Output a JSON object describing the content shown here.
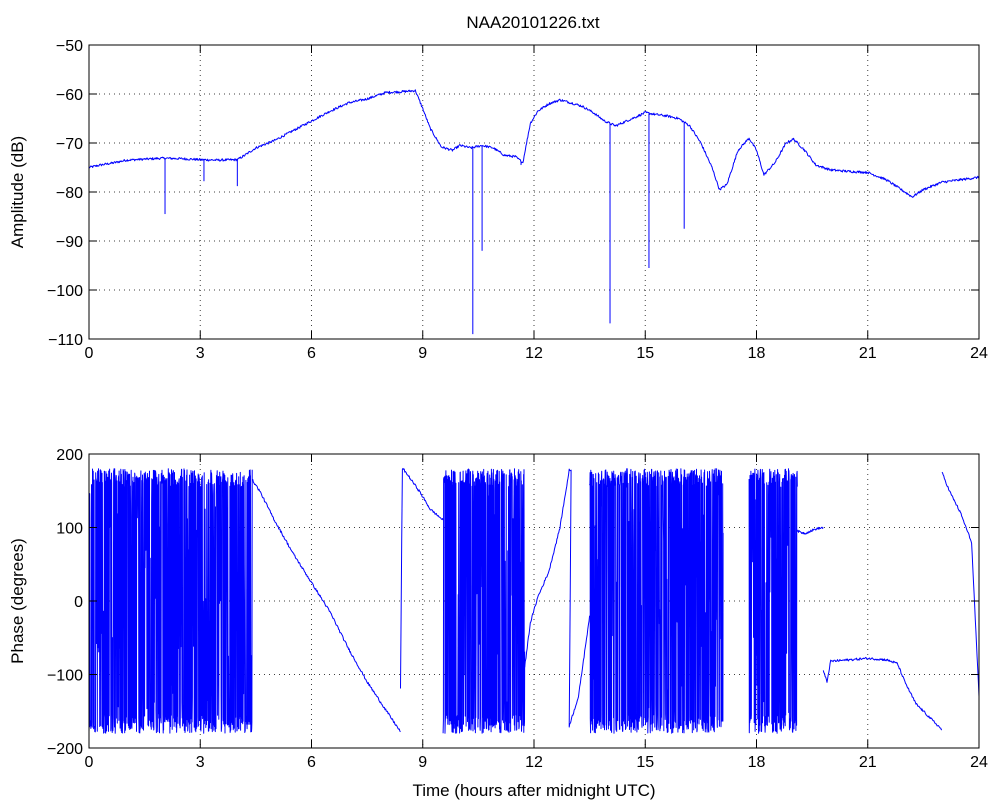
{
  "colors": {
    "series": "#0000ff",
    "axes": "#000000",
    "background": "#ffffff"
  },
  "chart_data": [
    {
      "type": "line",
      "title": "NAA20101226.txt",
      "xlabel": "",
      "ylabel": "Amplitude (dB)",
      "xlim": [
        0,
        24
      ],
      "ylim": [
        -110,
        -50
      ],
      "xticks": [
        0,
        3,
        6,
        9,
        12,
        15,
        18,
        21,
        24
      ],
      "yticks": [
        -110,
        -100,
        -90,
        -80,
        -70,
        -60,
        -50
      ],
      "grid": true,
      "series": [
        {
          "x": [
            0,
            0.3,
            0.7,
            1.0,
            1.5,
            2.0,
            2.5,
            3.0,
            3.5,
            4.0,
            4.2,
            4.5,
            5.0,
            5.5,
            6.0,
            6.5,
            7.0,
            7.5,
            8.0,
            8.5,
            8.8,
            9.0,
            9.2,
            9.5,
            9.8,
            10.0,
            10.3,
            10.6,
            10.9,
            11.2,
            11.5,
            11.7,
            11.9,
            12.1,
            12.4,
            12.7,
            13.0,
            13.3,
            13.6,
            13.9,
            14.2,
            14.5,
            14.8,
            15.0,
            15.3,
            15.6,
            15.9,
            16.2,
            16.5,
            16.8,
            17.0,
            17.2,
            17.5,
            17.8,
            18.0,
            18.2,
            18.5,
            18.8,
            19.0,
            19.3,
            19.6,
            20.0,
            20.5,
            21.0,
            21.5,
            22.0,
            22.2,
            22.5,
            23.0,
            23.5,
            24.0
          ],
          "y": [
            -75,
            -74.5,
            -74,
            -73.5,
            -73.3,
            -73.1,
            -73.2,
            -73.4,
            -73.5,
            -73.4,
            -72.5,
            -71,
            -69.5,
            -67.5,
            -65.5,
            -63.5,
            -61.8,
            -61,
            -59.7,
            -59.5,
            -59.3,
            -63,
            -67,
            -70.8,
            -71.5,
            -70.5,
            -71,
            -70.5,
            -71,
            -72.5,
            -72.8,
            -74,
            -66,
            -63.5,
            -62,
            -61.2,
            -61.8,
            -62.5,
            -63.8,
            -65.5,
            -66.5,
            -65.5,
            -64.5,
            -63.8,
            -64.2,
            -64.5,
            -65,
            -66.5,
            -70,
            -75,
            -79.5,
            -78.5,
            -71.5,
            -69,
            -71.5,
            -76.5,
            -74,
            -70,
            -69.2,
            -71.5,
            -74.5,
            -75.5,
            -75.8,
            -76,
            -77.5,
            -80,
            -81,
            -79.5,
            -78,
            -77.5,
            -77
          ]
        }
      ],
      "spikes": [
        {
          "x": 2.05,
          "y": -84.5
        },
        {
          "x": 3.1,
          "y": -77.8
        },
        {
          "x": 4.0,
          "y": -78.8
        },
        {
          "x": 10.35,
          "y": -109
        },
        {
          "x": 10.6,
          "y": -92
        },
        {
          "x": 11.65,
          "y": -74.5
        },
        {
          "x": 14.05,
          "y": -106.8
        },
        {
          "x": 15.1,
          "y": -95.5
        },
        {
          "x": 16.05,
          "y": -87.5
        }
      ]
    },
    {
      "type": "line",
      "title": "",
      "xlabel": "Time (hours after midnight UTC)",
      "ylabel": "Phase (degrees)",
      "xlim": [
        0,
        24
      ],
      "ylim": [
        -200,
        200
      ],
      "xticks": [
        0,
        3,
        6,
        9,
        12,
        15,
        18,
        21,
        24
      ],
      "yticks": [
        -200,
        -100,
        0,
        100,
        200
      ],
      "grid": true,
      "noise_bands": [
        [
          0,
          4.4
        ],
        [
          9.55,
          11.75
        ],
        [
          13.5,
          17.1
        ],
        [
          17.8,
          19.1
        ]
      ],
      "noise_range": [
        -180,
        180
      ],
      "series": [
        {
          "x": [
            4.4,
            4.6,
            5.0,
            5.5,
            6.0,
            6.5,
            7.0,
            7.5,
            8.0,
            8.4
          ],
          "y": [
            165,
            150,
            110,
            65,
            25,
            -15,
            -65,
            -110,
            -148,
            -178
          ]
        },
        {
          "x": [
            8.4,
            8.45,
            8.5,
            8.9,
            9.2,
            9.55
          ],
          "y": [
            -120,
            180,
            178,
            150,
            125,
            110
          ]
        },
        {
          "x": [
            11.75,
            11.9,
            12.1,
            12.4,
            12.7,
            12.95,
            13.0,
            12.95,
            13.2,
            13.5
          ],
          "y": [
            -90,
            -30,
            5,
            40,
            100,
            178,
            178,
            -170,
            -130,
            -20
          ]
        },
        {
          "x": [
            19.1,
            19.3,
            19.6,
            19.8
          ],
          "y": [
            95,
            92,
            98,
            100
          ]
        },
        {
          "x": [
            19.8,
            19.9,
            20.0,
            20.5,
            21.0,
            21.5,
            21.8,
            22.0,
            22.3,
            22.6,
            22.9,
            23.0
          ],
          "y": [
            -95,
            -110,
            -82,
            -80,
            -78,
            -80,
            -85,
            -110,
            -140,
            -155,
            -170,
            -175
          ]
        },
        {
          "x": [
            23.0,
            23.2,
            23.5,
            23.8,
            24.0
          ],
          "y": [
            175,
            150,
            120,
            80,
            -130
          ]
        }
      ]
    }
  ]
}
